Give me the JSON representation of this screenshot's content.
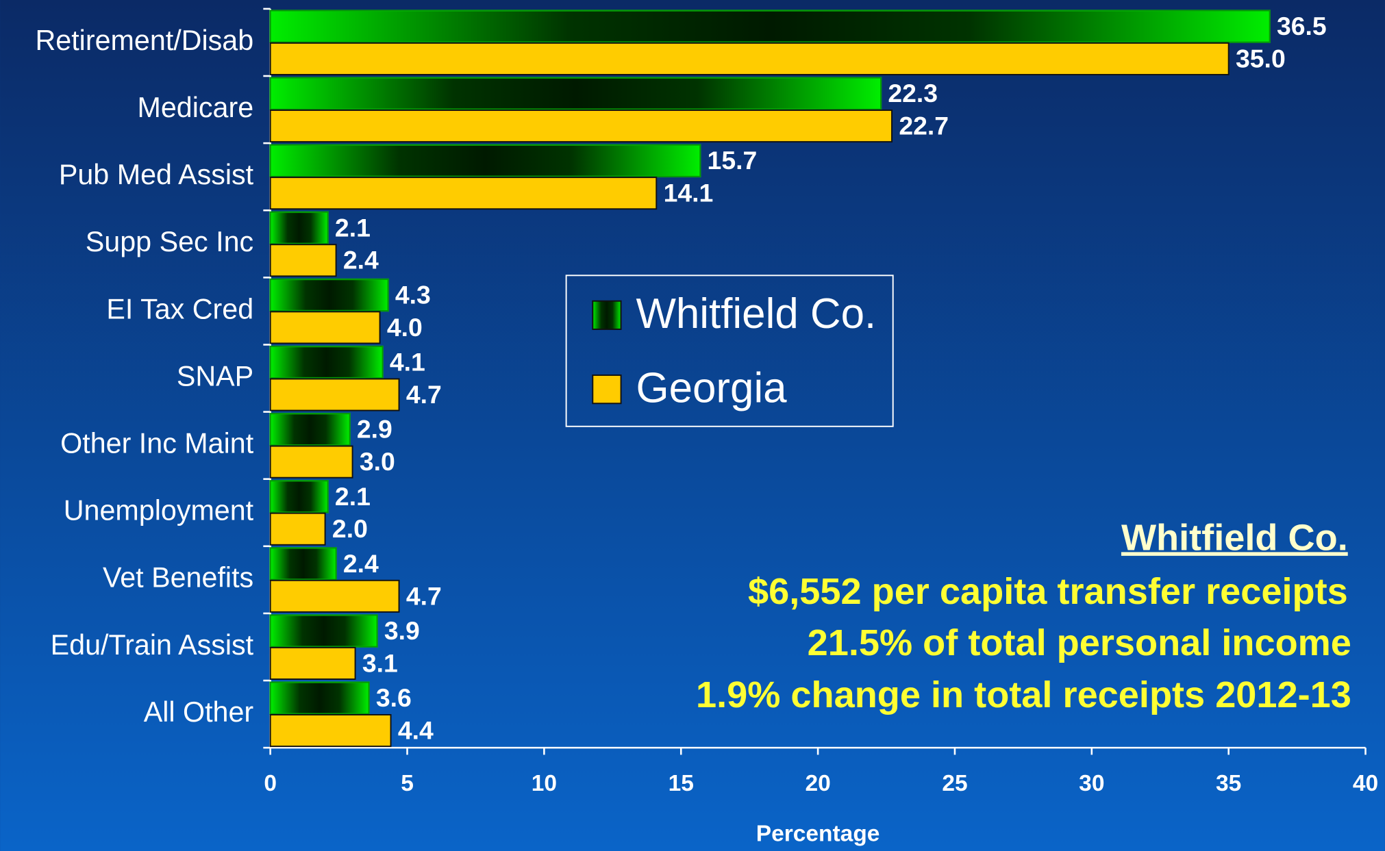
{
  "chart_data": {
    "type": "bar",
    "categories": [
      "Retirement/Disab",
      "Medicare",
      "Pub Med Assist",
      "Supp Sec Inc",
      "EI Tax Cred",
      "SNAP",
      "Other Inc Maint",
      "Unemployment",
      "Vet Benefits",
      "Edu/Train Assist",
      "All Other"
    ],
    "series": [
      {
        "name": "Whitfield Co.",
        "color": "#00ee00",
        "values": [
          36.5,
          22.3,
          15.7,
          2.1,
          4.3,
          4.1,
          2.9,
          2.1,
          2.4,
          3.9,
          3.6
        ]
      },
      {
        "name": "Georgia",
        "color": "#ffcc00",
        "values": [
          35,
          22.7,
          14.1,
          2.4,
          4,
          4.7,
          3,
          2,
          4.7,
          3.1,
          4.4
        ],
        "value_labels": [
          "35.0",
          "22.7",
          "14.1",
          "2.4",
          "4.0",
          "4.7",
          "3.0",
          "2.0",
          "4.7",
          "3.1",
          "4.4"
        ]
      }
    ],
    "xlabel": "Percentage",
    "xlim": [
      0,
      40
    ],
    "xticks": [
      0,
      5,
      10,
      15,
      20,
      25,
      30,
      35,
      40
    ],
    "annotations": [
      "Whitfield Co.",
      "$6,552 per capita transfer receipts",
      "21.5% of total personal income",
      "1.9% change in total receipts 2012-13"
    ]
  }
}
